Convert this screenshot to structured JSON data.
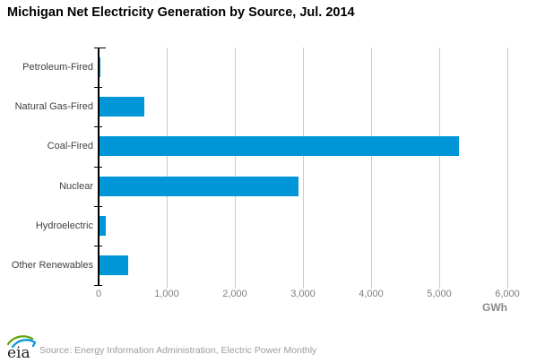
{
  "title": "Michigan Net Electricity Generation by Source, Jul. 2014",
  "chart_data": {
    "type": "bar",
    "orientation": "horizontal",
    "title": "Michigan Net Electricity Generation by Source, Jul. 2014",
    "categories": [
      "Petroleum-Fired",
      "Natural Gas-Fired",
      "Coal-Fired",
      "Nuclear",
      "Hydroelectric",
      "Other Renewables"
    ],
    "values": [
      20,
      670,
      5290,
      2930,
      110,
      440
    ],
    "xlabel": "GWh",
    "ylabel": "",
    "xlim": [
      0,
      6000
    ],
    "xticks": [
      0,
      1000,
      2000,
      3000,
      4000,
      5000,
      6000
    ],
    "xtick_labels": [
      "0",
      "1,000",
      "2,000",
      "3,000",
      "4,000",
      "5,000",
      "6,000"
    ],
    "grid": "vertical-gridlines-on",
    "legend": "none",
    "bar_color": "#0096d7"
  },
  "footer": {
    "logo_text": "eia",
    "source_text": "Source: Energy Information Administration, Electric Power Monthly"
  },
  "colors": {
    "bar": "#0096d7",
    "gridline": "#cccccc",
    "axis": "#000000",
    "tick_label": "#7f7f7f",
    "category_label": "#3f3f3f",
    "title": "#000000",
    "source_text": "#9b9b9b",
    "logo_green": "#5fa50a",
    "logo_blue": "#0096d7"
  }
}
